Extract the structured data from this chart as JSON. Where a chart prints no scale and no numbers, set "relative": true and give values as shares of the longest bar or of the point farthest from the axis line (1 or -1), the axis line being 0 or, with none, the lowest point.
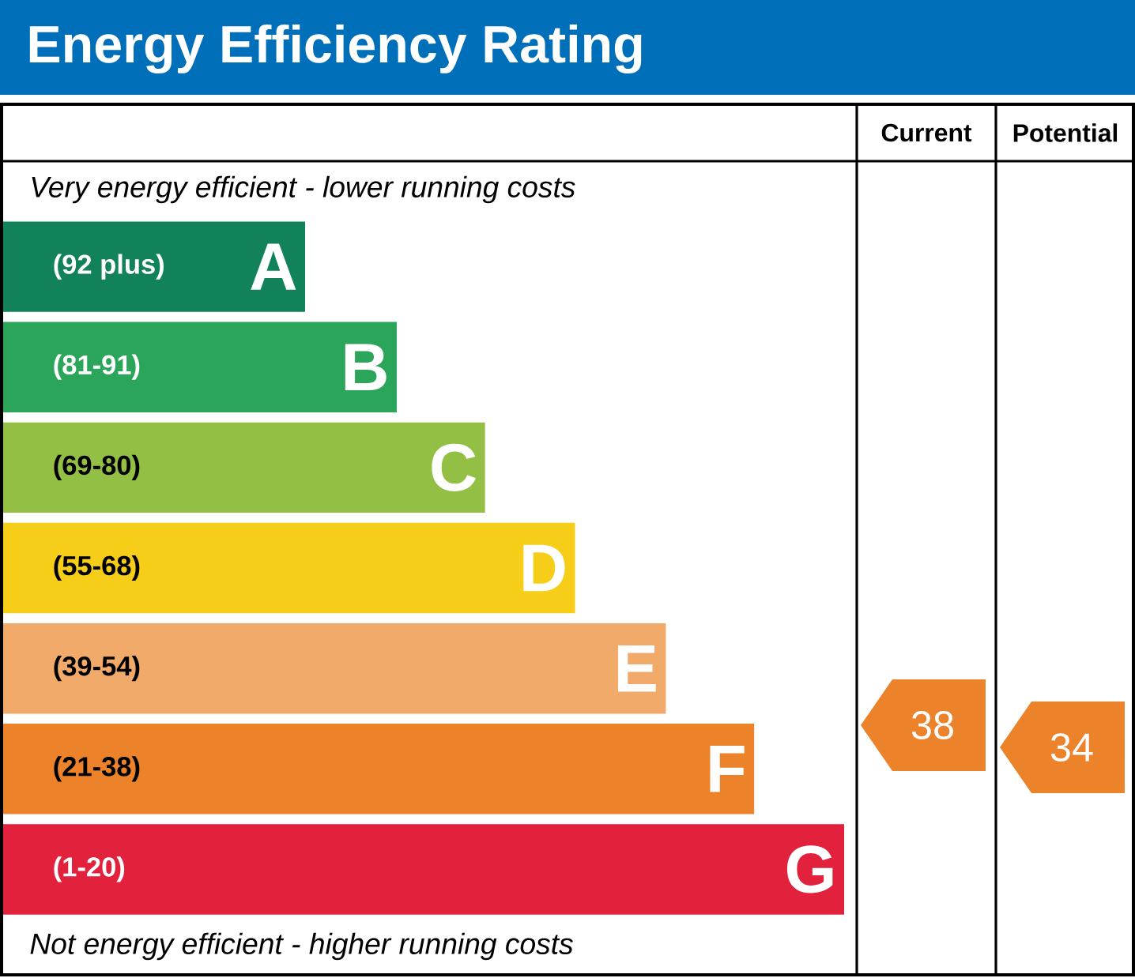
{
  "chart_data": {
    "type": "bar",
    "orientation": "horizontal",
    "relative": true,
    "title": "Energy Efficiency Rating",
    "categories": [
      "A",
      "B",
      "C",
      "D",
      "E",
      "F",
      "G"
    ],
    "values": [
      0.359,
      0.468,
      0.573,
      0.68,
      0.788,
      0.893,
      1
    ],
    "colors": [
      "#12825a",
      "#2ba55a",
      "#93bf45",
      "#f6cd18",
      "#f2aa6b",
      "#ec832a",
      "#e2213c"
    ],
    "annotations": [
      "Current",
      "Potential",
      "Very energy efficient - lower running costs",
      "Not energy efficient - higher running costs",
      "(92 plus)",
      "(81-91)",
      "(69-80)",
      "(55-68)",
      "(39-54)",
      "(21-38)",
      "(1-20)",
      "38",
      "34"
    ]
  }
}
